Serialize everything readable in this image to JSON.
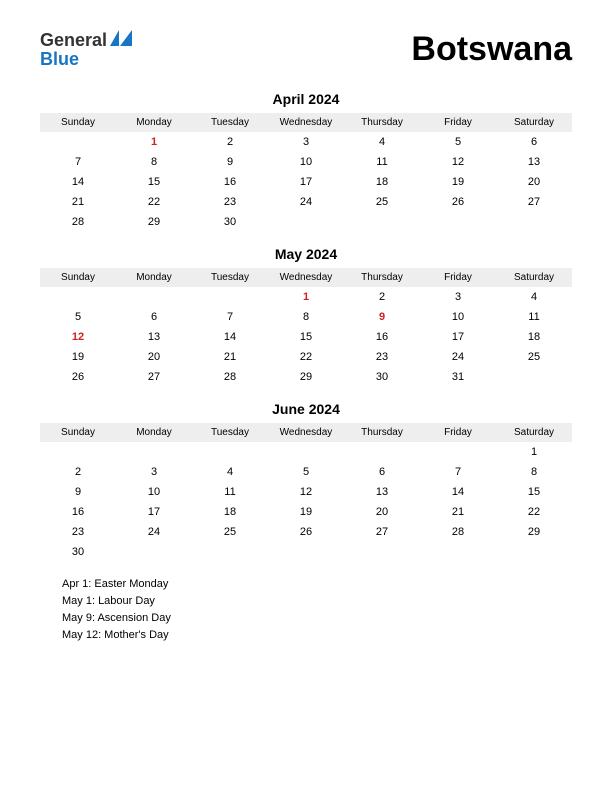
{
  "logo": {
    "text1": "General",
    "text2": "Blue",
    "color1": "#333333",
    "color2": "#1976c5",
    "icon_color": "#1976c5"
  },
  "country": "Botswana",
  "day_headers": [
    "Sunday",
    "Monday",
    "Tuesday",
    "Wednesday",
    "Thursday",
    "Friday",
    "Saturday"
  ],
  "colors": {
    "background": "#ffffff",
    "header_bg": "#eeeeee",
    "text": "#000000",
    "holiday": "#cc2222"
  },
  "fonts": {
    "country_size": 34,
    "month_title_size": 14,
    "day_header_size": 10,
    "cell_size": 11,
    "holiday_list_size": 11
  },
  "months": [
    {
      "title": "April 2024",
      "weeks": [
        [
          null,
          {
            "d": 1,
            "h": true
          },
          {
            "d": 2
          },
          {
            "d": 3
          },
          {
            "d": 4
          },
          {
            "d": 5
          },
          {
            "d": 6
          }
        ],
        [
          {
            "d": 7
          },
          {
            "d": 8
          },
          {
            "d": 9
          },
          {
            "d": 10
          },
          {
            "d": 11
          },
          {
            "d": 12
          },
          {
            "d": 13
          }
        ],
        [
          {
            "d": 14
          },
          {
            "d": 15
          },
          {
            "d": 16
          },
          {
            "d": 17
          },
          {
            "d": 18
          },
          {
            "d": 19
          },
          {
            "d": 20
          }
        ],
        [
          {
            "d": 21
          },
          {
            "d": 22
          },
          {
            "d": 23
          },
          {
            "d": 24
          },
          {
            "d": 25
          },
          {
            "d": 26
          },
          {
            "d": 27
          }
        ],
        [
          {
            "d": 28
          },
          {
            "d": 29
          },
          {
            "d": 30
          },
          null,
          null,
          null,
          null
        ]
      ]
    },
    {
      "title": "May 2024",
      "weeks": [
        [
          null,
          null,
          null,
          {
            "d": 1,
            "h": true
          },
          {
            "d": 2
          },
          {
            "d": 3
          },
          {
            "d": 4
          }
        ],
        [
          {
            "d": 5
          },
          {
            "d": 6
          },
          {
            "d": 7
          },
          {
            "d": 8
          },
          {
            "d": 9,
            "h": true
          },
          {
            "d": 10
          },
          {
            "d": 11
          }
        ],
        [
          {
            "d": 12,
            "h": true
          },
          {
            "d": 13
          },
          {
            "d": 14
          },
          {
            "d": 15
          },
          {
            "d": 16
          },
          {
            "d": 17
          },
          {
            "d": 18
          }
        ],
        [
          {
            "d": 19
          },
          {
            "d": 20
          },
          {
            "d": 21
          },
          {
            "d": 22
          },
          {
            "d": 23
          },
          {
            "d": 24
          },
          {
            "d": 25
          }
        ],
        [
          {
            "d": 26
          },
          {
            "d": 27
          },
          {
            "d": 28
          },
          {
            "d": 29
          },
          {
            "d": 30
          },
          {
            "d": 31
          },
          null
        ]
      ]
    },
    {
      "title": "June 2024",
      "weeks": [
        [
          null,
          null,
          null,
          null,
          null,
          null,
          {
            "d": 1
          }
        ],
        [
          {
            "d": 2
          },
          {
            "d": 3
          },
          {
            "d": 4
          },
          {
            "d": 5
          },
          {
            "d": 6
          },
          {
            "d": 7
          },
          {
            "d": 8
          }
        ],
        [
          {
            "d": 9
          },
          {
            "d": 10
          },
          {
            "d": 11
          },
          {
            "d": 12
          },
          {
            "d": 13
          },
          {
            "d": 14
          },
          {
            "d": 15
          }
        ],
        [
          {
            "d": 16
          },
          {
            "d": 17
          },
          {
            "d": 18
          },
          {
            "d": 19
          },
          {
            "d": 20
          },
          {
            "d": 21
          },
          {
            "d": 22
          }
        ],
        [
          {
            "d": 23
          },
          {
            "d": 24
          },
          {
            "d": 25
          },
          {
            "d": 26
          },
          {
            "d": 27
          },
          {
            "d": 28
          },
          {
            "d": 29
          }
        ],
        [
          {
            "d": 30
          },
          null,
          null,
          null,
          null,
          null,
          null
        ]
      ]
    }
  ],
  "holidays": [
    "Apr 1: Easter Monday",
    "May 1: Labour Day",
    "May 9: Ascension Day",
    "May 12: Mother's Day"
  ]
}
